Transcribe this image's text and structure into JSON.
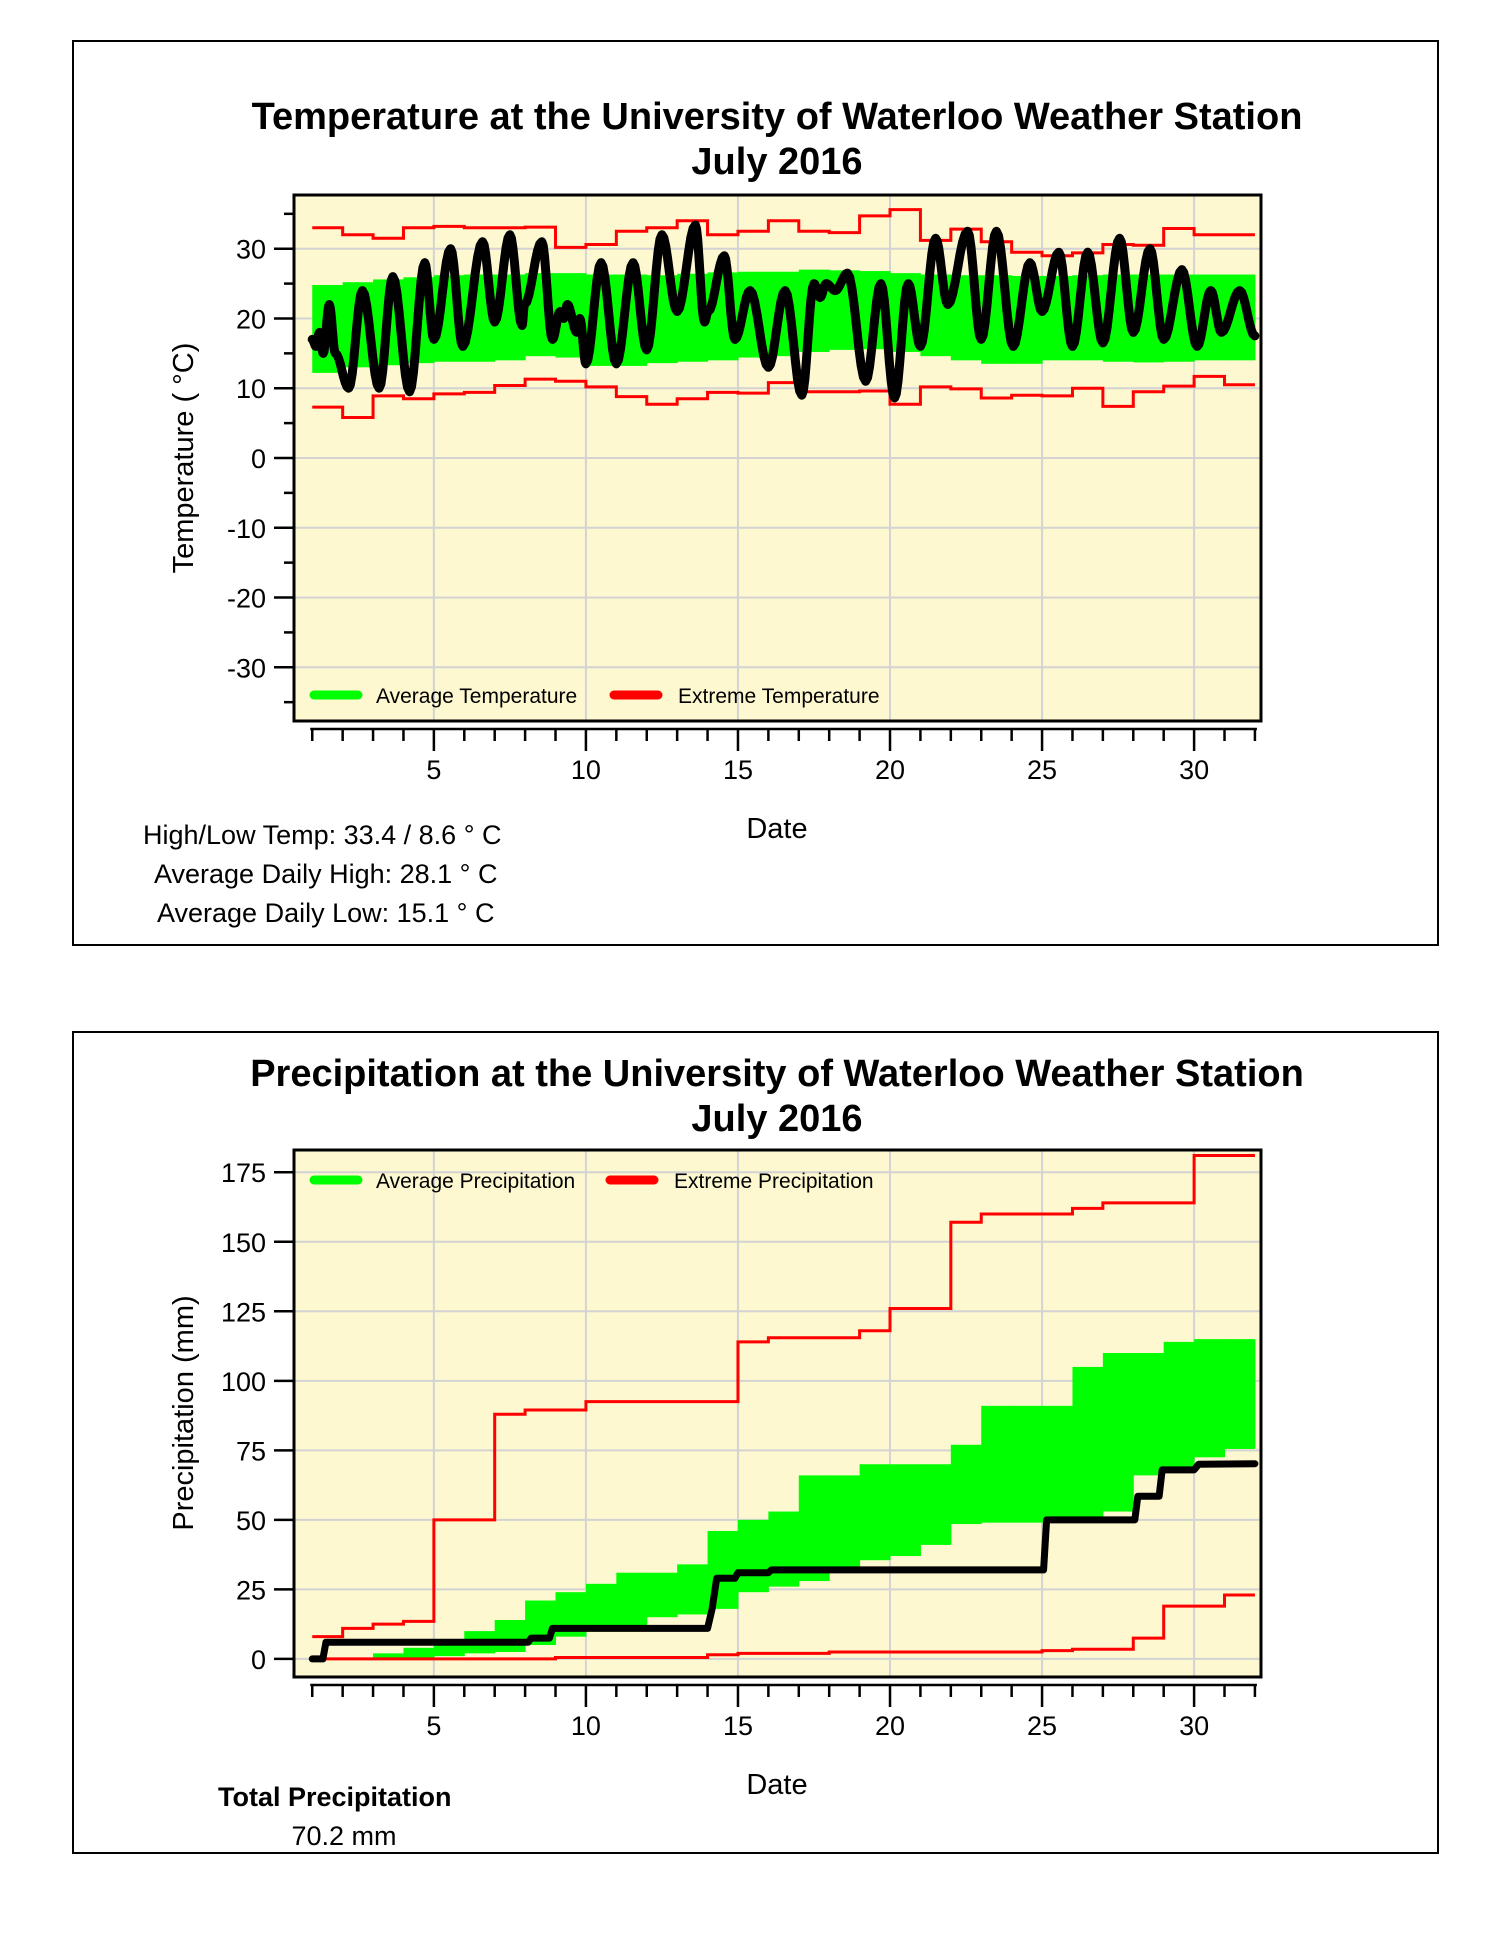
{
  "chart_data": [
    {
      "type": "line",
      "title": [
        "Temperature at the University of Waterloo Weather Station",
        "July 2016"
      ],
      "xlabel": "Date",
      "ylabel": "Temperature ( °C)",
      "xlim": [
        0.4,
        32.2
      ],
      "ylim": [
        -37.7,
        37.7
      ],
      "x_ticks": [
        5,
        10,
        15,
        20,
        25,
        30
      ],
      "y_ticks": [
        -30,
        -20,
        -10,
        0,
        10,
        20,
        30
      ],
      "grid": true,
      "legend_position": "bottom-left",
      "legend": [
        "Average Temperature",
        "Extreme Temperature"
      ],
      "colors": {
        "background": "#fdf8cf",
        "average": "#00ff00",
        "extreme": "#ff0000",
        "observed": "#000000",
        "grid": "#d3d3d3"
      },
      "days": [
        1,
        2,
        3,
        4,
        5,
        6,
        7,
        8,
        9,
        10,
        11,
        12,
        13,
        14,
        15,
        16,
        17,
        18,
        19,
        20,
        21,
        22,
        23,
        24,
        25,
        26,
        27,
        28,
        29,
        30,
        31
      ],
      "average_high": [
        24.8,
        25.2,
        25.6,
        25.9,
        26.2,
        26.3,
        26.3,
        26.5,
        26.5,
        26.3,
        26.3,
        26.2,
        26.4,
        26.6,
        26.7,
        26.7,
        27.0,
        26.9,
        26.8,
        26.5,
        26.3,
        26.2,
        26.2,
        26.1,
        26.1,
        26.2,
        26.3,
        26.3,
        26.3,
        26.3,
        26.3
      ],
      "average_low": [
        12.2,
        13.0,
        13.3,
        13.6,
        13.8,
        13.8,
        14.0,
        14.6,
        14.4,
        13.2,
        13.2,
        13.6,
        13.8,
        14.0,
        14.4,
        14.6,
        15.2,
        15.5,
        15.6,
        15.2,
        14.6,
        14.0,
        13.5,
        13.5,
        14.0,
        14.0,
        13.8,
        13.7,
        13.8,
        14.0,
        14.0
      ],
      "extreme_high": [
        33,
        32,
        31.5,
        33,
        33.2,
        33,
        33,
        33.1,
        30.2,
        30.6,
        32.5,
        33,
        34,
        32,
        32.5,
        34,
        32.5,
        32.3,
        34.7,
        35.6,
        31.2,
        32.8,
        31,
        29.5,
        29,
        29.4,
        30.6,
        30.5,
        32.9,
        32,
        32
      ],
      "extreme_low": [
        7.3,
        5.8,
        8.9,
        8.5,
        9.2,
        9.4,
        10.4,
        11.3,
        11,
        10.2,
        8.8,
        7.7,
        8.5,
        9.4,
        9.3,
        10.8,
        9.5,
        9.5,
        9.6,
        7.7,
        10.2,
        9.9,
        8.6,
        9,
        8.9,
        10,
        7.4,
        9.5,
        10.3,
        11.7,
        10.5
      ],
      "observed": [
        [
          1,
          17
        ],
        [
          1.12,
          16
        ],
        [
          1.24,
          18
        ],
        [
          1.36,
          15
        ],
        [
          1.56,
          22
        ],
        [
          1.76,
          15
        ],
        [
          2.2,
          10
        ],
        [
          2.65,
          24
        ],
        [
          3.2,
          10
        ],
        [
          3.65,
          26
        ],
        [
          4.2,
          9.5
        ],
        [
          4.7,
          28
        ],
        [
          5,
          17
        ],
        [
          5.55,
          30
        ],
        [
          5.95,
          16
        ],
        [
          6.6,
          31
        ],
        [
          7,
          19.5
        ],
        [
          7.5,
          32
        ],
        [
          7.9,
          19
        ],
        [
          7.98,
          22
        ],
        [
          8.55,
          31
        ],
        [
          8.9,
          17
        ],
        [
          9.15,
          21
        ],
        [
          9.27,
          20
        ],
        [
          9.39,
          22
        ],
        [
          9.7,
          18
        ],
        [
          9.8,
          20
        ],
        [
          10,
          13.5
        ],
        [
          10.5,
          28
        ],
        [
          11,
          13.5
        ],
        [
          11.55,
          28
        ],
        [
          12,
          15.5
        ],
        [
          12.5,
          32
        ],
        [
          13,
          21
        ],
        [
          13.6,
          33.4
        ],
        [
          13.9,
          19.5
        ],
        [
          14.02,
          21
        ],
        [
          14.55,
          29
        ],
        [
          14.9,
          17
        ],
        [
          15.4,
          24
        ],
        [
          16,
          13
        ],
        [
          16.55,
          24
        ],
        [
          17.1,
          9
        ],
        [
          17.5,
          25
        ],
        [
          17.7,
          23
        ],
        [
          17.9,
          25
        ],
        [
          18.2,
          24
        ],
        [
          18.6,
          26.5
        ],
        [
          19.2,
          11
        ],
        [
          19.7,
          25
        ],
        [
          20.15,
          8.6
        ],
        [
          20.6,
          25
        ],
        [
          21,
          16
        ],
        [
          21.5,
          31.5
        ],
        [
          21.9,
          22
        ],
        [
          22.55,
          32.5
        ],
        [
          23,
          17
        ],
        [
          23.5,
          32.5
        ],
        [
          24.05,
          16
        ],
        [
          24.6,
          28
        ],
        [
          25,
          21
        ],
        [
          25.55,
          29.5
        ],
        [
          26,
          16
        ],
        [
          26.5,
          29.5
        ],
        [
          27,
          16.5
        ],
        [
          27.55,
          31.5
        ],
        [
          28,
          18
        ],
        [
          28.55,
          30
        ],
        [
          29,
          17
        ],
        [
          29.6,
          27
        ],
        [
          30.1,
          16
        ],
        [
          30.55,
          24
        ],
        [
          30.9,
          18
        ],
        [
          31.5,
          24
        ],
        [
          32,
          17.5
        ]
      ],
      "summary": {
        "high_low_label": "High/Low Temp:  33.4 / 8.6 ° C",
        "avg_high_label": "Average Daily High:  28.1 ° C",
        "avg_low_label": "Average Daily Low:  15.1 ° C"
      }
    },
    {
      "type": "line",
      "title": [
        "Precipitation at the University of Waterloo Weather Station",
        "July 2016"
      ],
      "xlabel": "Date",
      "ylabel": "Precipitation (mm)",
      "xlim": [
        0.4,
        32.2
      ],
      "ylim": [
        -6.5,
        183
      ],
      "x_ticks": [
        5,
        10,
        15,
        20,
        25,
        30
      ],
      "y_ticks": [
        0,
        25,
        50,
        75,
        100,
        125,
        150,
        175
      ],
      "grid": true,
      "legend_position": "top-left",
      "legend": [
        "Average Precipitation",
        "Extreme Precipitation"
      ],
      "colors": {
        "background": "#fdf8cf",
        "average": "#00ff00",
        "extreme": "#ff0000",
        "observed": "#000000",
        "grid": "#d3d3d3"
      },
      "days": [
        1,
        2,
        3,
        4,
        5,
        6,
        7,
        8,
        9,
        10,
        11,
        12,
        13,
        14,
        15,
        16,
        17,
        18,
        19,
        20,
        21,
        22,
        23,
        24,
        25,
        26,
        27,
        28,
        29,
        30,
        31
      ],
      "average_high": [
        0,
        0,
        2,
        4,
        6,
        10,
        14,
        21,
        24,
        27,
        31,
        31,
        34,
        46,
        50,
        53,
        66,
        66,
        70,
        70,
        70,
        77,
        91,
        91,
        91,
        105,
        110,
        110,
        114,
        115,
        115
      ],
      "average_low": [
        0,
        0,
        0,
        0.5,
        1,
        2,
        2.5,
        5,
        8,
        11,
        12,
        15,
        16,
        18,
        24,
        26,
        28,
        33,
        35.5,
        37,
        41,
        48.5,
        49,
        49,
        49,
        50,
        53,
        66,
        67,
        72.5,
        75.5
      ],
      "extreme_high": [
        8,
        11,
        12.5,
        13.5,
        50,
        50,
        88,
        89.5,
        89.5,
        92.5,
        92.5,
        92.5,
        92.5,
        92.5,
        114,
        115.5,
        115.5,
        115.5,
        118,
        126,
        126,
        157,
        160,
        160,
        160,
        162,
        164,
        164,
        164,
        181,
        181
      ],
      "extreme_low": [
        0,
        0,
        0,
        0,
        0,
        0,
        0,
        0,
        0.5,
        0.5,
        0.5,
        0.5,
        0.5,
        1.5,
        2,
        2,
        2,
        2.5,
        2.5,
        2.5,
        2.5,
        2.5,
        2.5,
        2.5,
        3,
        3.5,
        3.5,
        7.5,
        19,
        19,
        23
      ],
      "observed": [
        [
          1,
          0
        ],
        [
          1.35,
          0
        ],
        [
          1.45,
          6
        ],
        [
          8.1,
          6
        ],
        [
          8.2,
          7.5
        ],
        [
          8.8,
          7.5
        ],
        [
          8.9,
          11
        ],
        [
          14,
          11
        ],
        [
          14.15,
          18
        ],
        [
          14.3,
          29
        ],
        [
          14.9,
          29
        ],
        [
          15,
          31
        ],
        [
          16,
          31
        ],
        [
          16.1,
          32
        ],
        [
          25.05,
          32
        ],
        [
          25.15,
          50
        ],
        [
          28.05,
          50
        ],
        [
          28.15,
          58.5
        ],
        [
          28.85,
          58.5
        ],
        [
          28.95,
          68
        ],
        [
          30,
          68
        ],
        [
          30.15,
          70
        ],
        [
          32,
          70.2
        ]
      ],
      "summary": {
        "total_label": "Total Precipitation",
        "total_value": "70.2 mm"
      }
    }
  ]
}
